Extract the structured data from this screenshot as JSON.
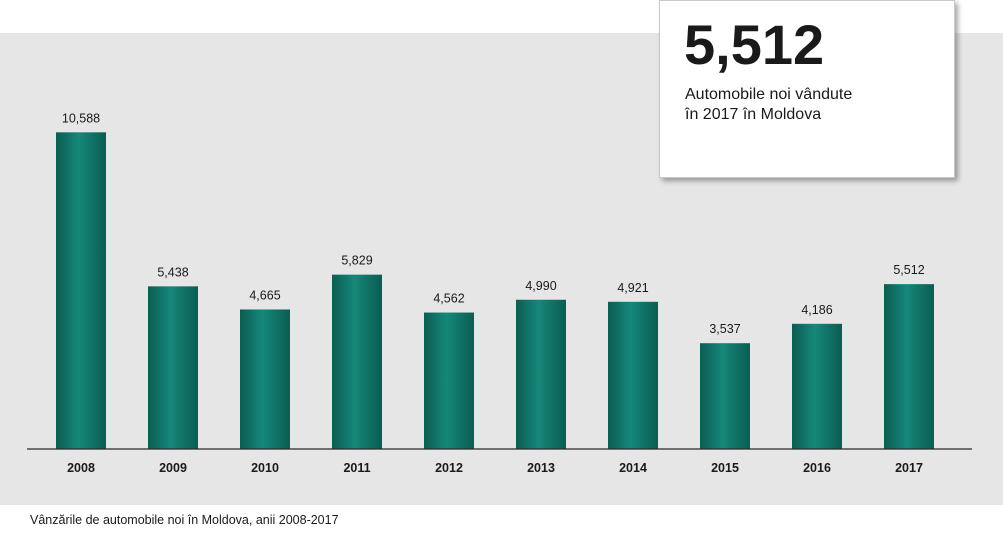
{
  "callout": {
    "number": "5,512",
    "line1": "Automobile noi vândute",
    "line2": "în 2017 în Moldova"
  },
  "caption": "Vânzările de automobile noi în Moldova, anii 2008-2017",
  "colors": {
    "bar_light": "#15877a",
    "bar_dark": "#0d5c52",
    "panel_bg": "#e6e6e6"
  },
  "chart_data": {
    "type": "bar",
    "title": "",
    "xlabel": "",
    "ylabel": "",
    "ylim": [
      0,
      11000
    ],
    "grid": false,
    "categories": [
      "2008",
      "2009",
      "2010",
      "2011",
      "2012",
      "2013",
      "2014",
      "2015",
      "2016",
      "2017"
    ],
    "values": [
      10588,
      5438,
      4665,
      5829,
      4562,
      4990,
      4921,
      3537,
      4186,
      5512
    ],
    "value_labels": [
      "10,588",
      "5,438",
      "4,665",
      "5,829",
      "4,562",
      "4,990",
      "4,921",
      "3,537",
      "4,186",
      "5,512"
    ]
  }
}
